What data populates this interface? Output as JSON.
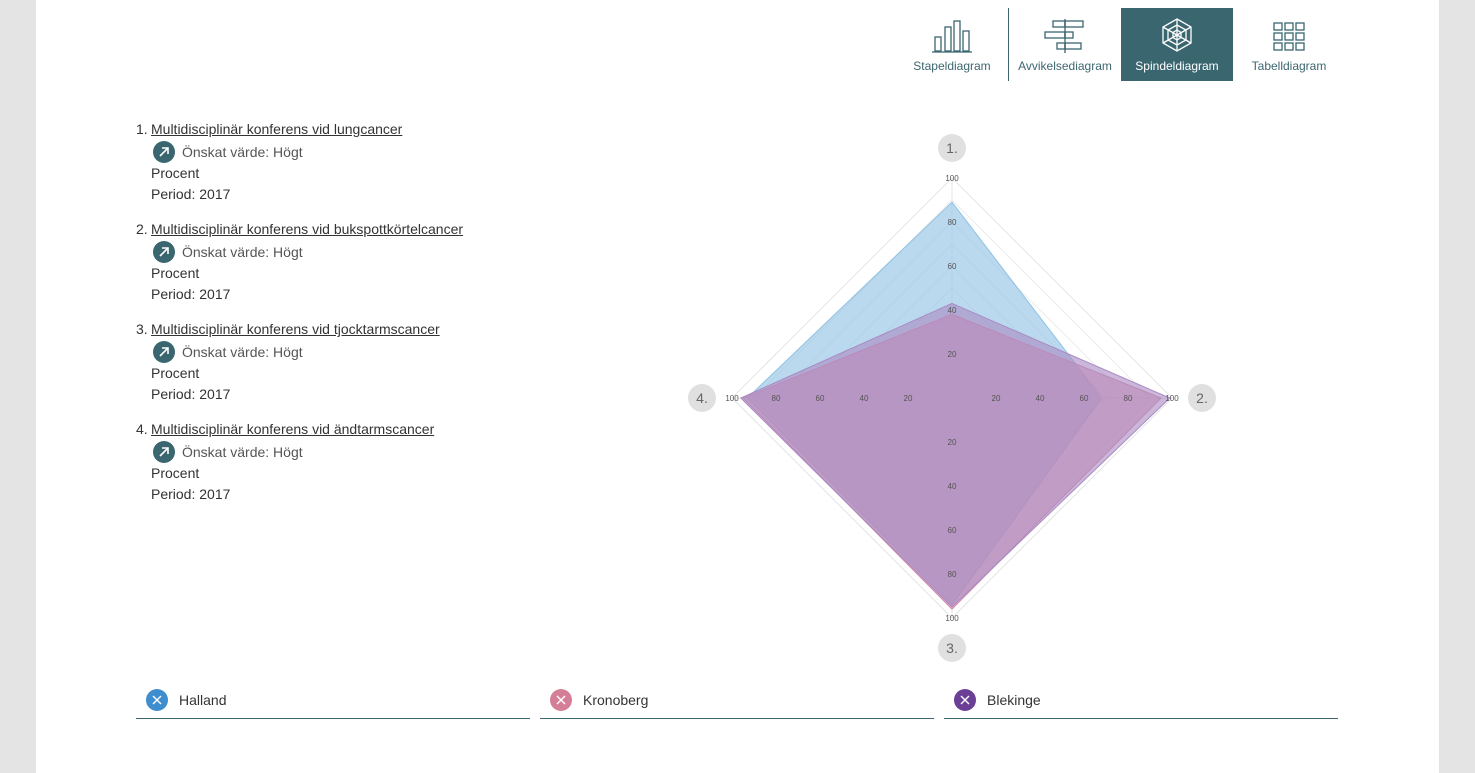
{
  "toolbar": {
    "items": [
      {
        "label": "Stapeldiagram",
        "icon": "bar-chart-icon"
      },
      {
        "label": "Avvikelsediagram",
        "icon": "deviation-chart-icon"
      },
      {
        "label": "Spindeldiagram",
        "icon": "spider-chart-icon"
      },
      {
        "label": "Tabelldiagram",
        "icon": "table-chart-icon"
      }
    ],
    "active": "Spindeldiagram"
  },
  "indicators": [
    {
      "num": "1.",
      "title": "Multidisciplinär konferens vid lungcancer",
      "desired": "Önskat värde:",
      "desired_value": "Högt",
      "unit": "Procent",
      "period": "Period: 2017"
    },
    {
      "num": "2.",
      "title": "Multidisciplinär konferens vid bukspottkörtelcancer",
      "desired": "Önskat värde:",
      "desired_value": "Högt",
      "unit": "Procent",
      "period": "Period: 2017"
    },
    {
      "num": "3.",
      "title": "Multidisciplinär konferens vid tjocktarmscancer",
      "desired": "Önskat värde:",
      "desired_value": "Högt",
      "unit": "Procent",
      "period": "Period: 2017"
    },
    {
      "num": "4.",
      "title": "Multidisciplinär konferens vid ändtarmscancer",
      "desired": "Önskat värde:",
      "desired_value": "Högt",
      "unit": "Procent",
      "period": "Period: 2017"
    }
  ],
  "chart_data": {
    "type": "radar",
    "axes": [
      "1.",
      "2.",
      "3.",
      "4."
    ],
    "ticks": [
      20,
      40,
      60,
      80,
      100
    ],
    "range": [
      0,
      100
    ],
    "series": [
      {
        "name": "Halland",
        "color": "#8fc1e3",
        "values": [
          89,
          68,
          94,
          93
        ]
      },
      {
        "name": "Kronoberg",
        "color": "#d88aa8",
        "values": [
          38,
          95,
          96,
          95
        ]
      },
      {
        "name": "Blekinge",
        "color": "#a98bc4",
        "values": [
          43,
          99,
          95,
          96
        ]
      }
    ]
  },
  "legend": [
    {
      "label": "Halland",
      "color": "#3e8dcf"
    },
    {
      "label": "Kronoberg",
      "color": "#d47f97"
    },
    {
      "label": "Blekinge",
      "color": "#6b3f95"
    }
  ]
}
